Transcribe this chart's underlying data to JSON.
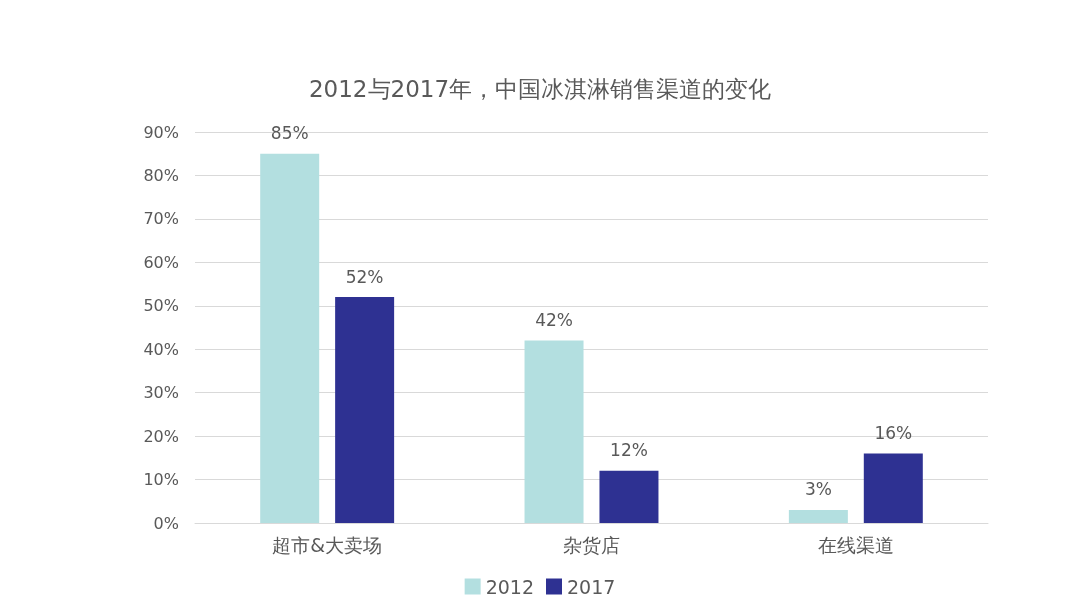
{
  "chart_data": {
    "type": "bar",
    "title": "2012与2017年，中国冰淇淋销售渠道的变化",
    "categories": [
      "超市&大卖场",
      "杂货店",
      "在线渠道"
    ],
    "series": [
      {
        "name": "2012",
        "color": "#b3dfe0",
        "values": [
          85,
          42,
          3
        ],
        "value_labels": [
          "85%",
          "42%",
          "3%"
        ]
      },
      {
        "name": "2017",
        "color": "#2e3192",
        "values": [
          52,
          12,
          16
        ],
        "value_labels": [
          "52%",
          "12%",
          "16%"
        ]
      }
    ],
    "ylim": [
      0,
      90
    ],
    "yticks": [
      {
        "value": 0,
        "label": "0%"
      },
      {
        "value": 10,
        "label": "10%"
      },
      {
        "value": 20,
        "label": "20%"
      },
      {
        "value": 30,
        "label": "30%"
      },
      {
        "value": 40,
        "label": "40%"
      },
      {
        "value": 50,
        "label": "50%"
      },
      {
        "value": 60,
        "label": "60%"
      },
      {
        "value": 70,
        "label": "70%"
      },
      {
        "value": 80,
        "label": "80%"
      },
      {
        "value": 90,
        "label": "90%"
      }
    ],
    "grid": "y",
    "legend": "bottom"
  }
}
